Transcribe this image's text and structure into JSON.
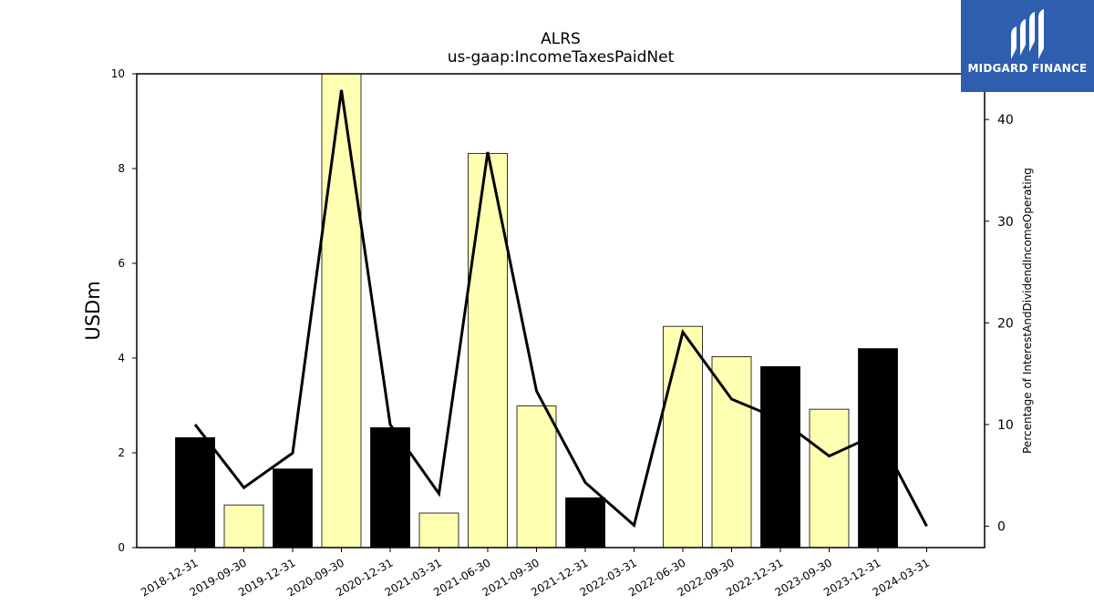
{
  "chart_data": {
    "type": "bar",
    "title": "ALRS",
    "subtitle": "us-gaap:IncomeTaxesPaidNet",
    "ylabel": "USDm",
    "ylabel_right": "Percentage of InterestAndDividendIncomeOperating",
    "ylim": [
      0,
      10
    ],
    "ylim_right": [
      -2.1,
      44.5
    ],
    "yticks": [
      0,
      2,
      4,
      6,
      8,
      10
    ],
    "yticks_right": [
      0,
      10,
      20,
      30,
      40
    ],
    "categories": [
      "2018-12-31",
      "2019-09-30",
      "2019-12-31",
      "2020-09-30",
      "2020-12-31",
      "2021-03-31",
      "2021-06-30",
      "2021-09-30",
      "2021-12-31",
      "2022-03-31",
      "2022-06-30",
      "2022-09-30",
      "2022-12-31",
      "2023-09-30",
      "2023-12-31",
      "2024-03-31"
    ],
    "series": [
      {
        "type": "bar",
        "axis": "left",
        "values": [
          2.32,
          0.9,
          1.66,
          10.0,
          2.53,
          0.73,
          8.32,
          2.99,
          1.05,
          0.0,
          4.67,
          4.03,
          3.82,
          2.92,
          4.2,
          0.0
        ],
        "colors": [
          "#000000",
          "#ffffb2",
          "#000000",
          "#ffffb2",
          "#000000",
          "#ffffb2",
          "#ffffb2",
          "#ffffb2",
          "#000000",
          "#ffffb2",
          "#ffffb2",
          "#ffffb2",
          "#000000",
          "#ffffb2",
          "#000000",
          "#ffffb2"
        ]
      },
      {
        "type": "line",
        "axis": "right",
        "values": [
          10.0,
          3.8,
          7.2,
          42.9,
          10.0,
          3.2,
          36.8,
          13.3,
          4.3,
          0.1,
          19.1,
          12.5,
          10.5,
          6.9,
          9.1,
          0.0
        ],
        "color": "#000000"
      }
    ],
    "grid": false,
    "legend": "none"
  },
  "logo": {
    "text": "MIDGARD FINANCE",
    "color": "#2d5fae"
  }
}
